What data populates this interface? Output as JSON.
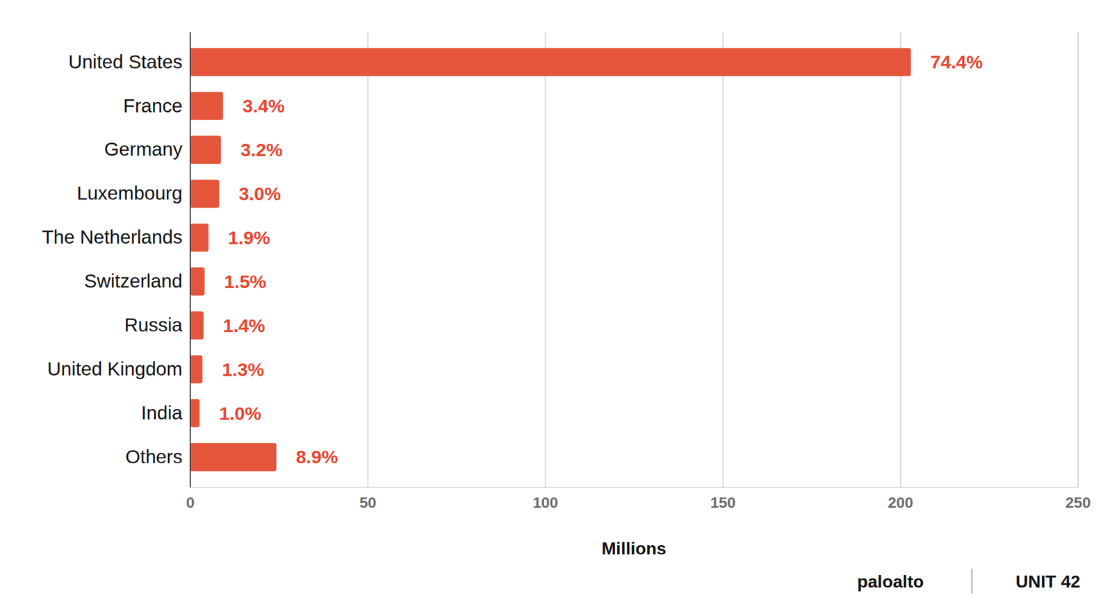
{
  "chart_data": {
    "type": "bar",
    "orientation": "horizontal",
    "categories": [
      "United States",
      "France",
      "Germany",
      "Luxembourg",
      "The Netherlands",
      "Switzerland",
      "Russia",
      "United Kingdom",
      "India",
      "Others"
    ],
    "values": [
      203,
      9.3,
      8.7,
      8.2,
      5.2,
      4.1,
      3.8,
      3.5,
      2.7,
      24.3
    ],
    "share_labels": [
      "74.4%",
      "3.4%",
      "3.2%",
      "3.0%",
      "1.9%",
      "1.5%",
      "1.4%",
      "1.3%",
      "1.0%",
      "8.9%"
    ],
    "color": "#e5553b",
    "x_label": "Millions",
    "xlim": [
      0,
      250
    ],
    "xticks": [
      0,
      50,
      100,
      150,
      200,
      250
    ],
    "grid": true,
    "annotations": [
      "paloalto",
      "UNIT 42"
    ]
  }
}
